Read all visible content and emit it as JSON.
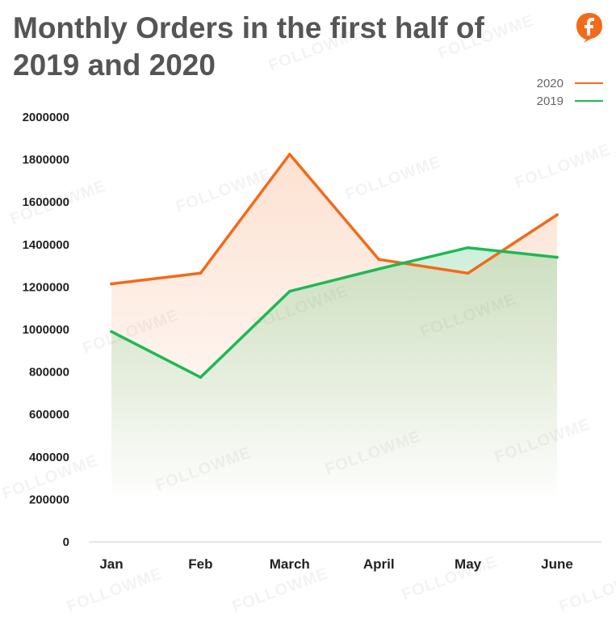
{
  "page": {
    "title": "Monthly Orders in the first half of 2019 and 2020",
    "title_line1": "Monthly Orders in the first half of",
    "title_line2": "2019 and 2020",
    "watermark_text": "FOLLOWME",
    "logo_icon": "followme-logo-icon"
  },
  "colors": {
    "series_2020": "#f26a1b",
    "series_2019": "#1db954",
    "axis": "#e6e6e6",
    "title": "#555555"
  },
  "chart_data": {
    "type": "line",
    "title": "Monthly Orders in the first half of 2019 and 2020",
    "xlabel": "",
    "ylabel": "",
    "categories": [
      "Jan",
      "Feb",
      "March",
      "April",
      "May",
      "June"
    ],
    "ylim": [
      0,
      2000000
    ],
    "yticks": [
      "0",
      "200000",
      "400000",
      "600000",
      "800000",
      "1000000",
      "1200000",
      "1400000",
      "1600000",
      "1800000",
      "2000000"
    ],
    "grid": false,
    "legend_position": "top-right",
    "series": [
      {
        "name": "2020",
        "color": "#f26a1b",
        "values": [
          1215000,
          1265000,
          1825000,
          1330000,
          1265000,
          1540000
        ]
      },
      {
        "name": "2019",
        "color": "#1db954",
        "values": [
          990000,
          775000,
          1180000,
          1285000,
          1385000,
          1340000
        ]
      }
    ]
  }
}
